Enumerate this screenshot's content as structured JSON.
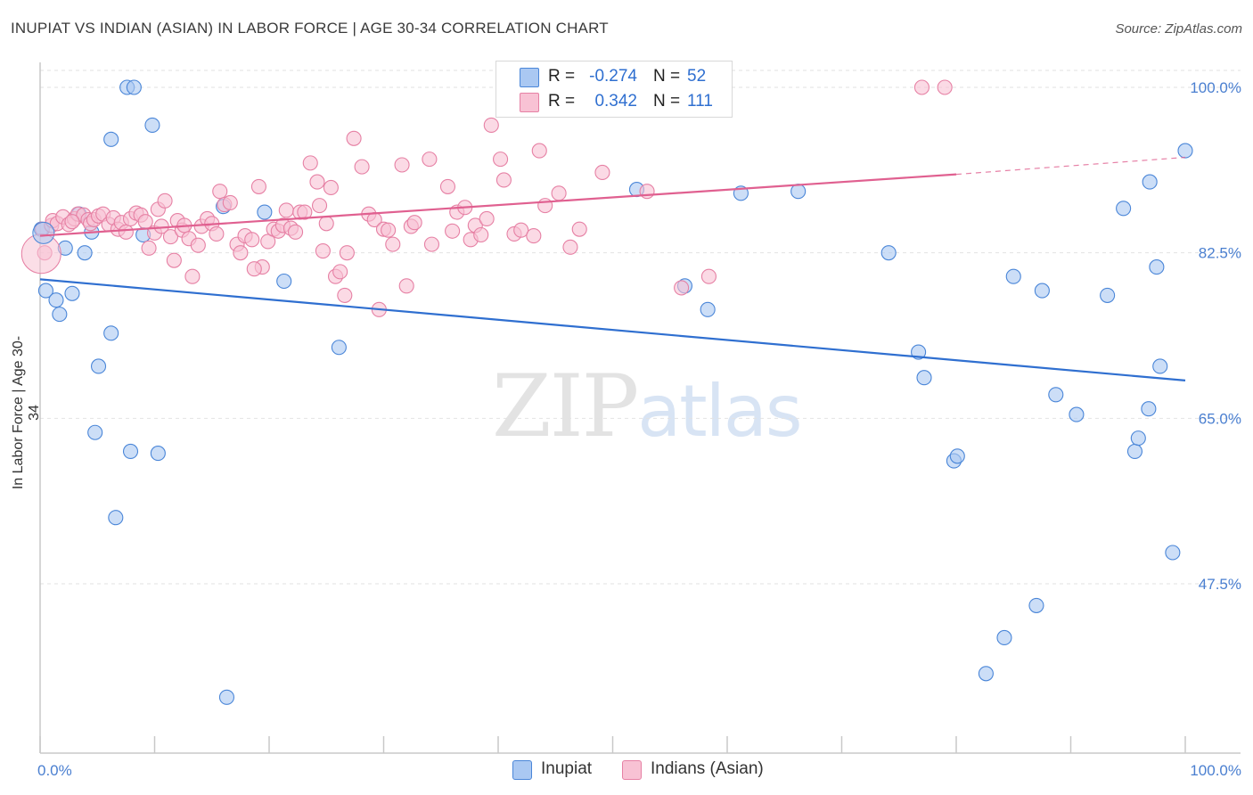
{
  "header": {
    "title": "INUPIAT VS INDIAN (ASIAN) IN LABOR FORCE | AGE 30-34 CORRELATION CHART",
    "source": "Source: ZipAtlas.com"
  },
  "watermark": {
    "zip": "ZIP",
    "atlas": "atlas"
  },
  "stats": {
    "r_label": "R =",
    "n_label": "N =",
    "inupiat": {
      "r": "-0.274",
      "n": "52"
    },
    "indian": {
      "r": "0.342",
      "n": "111"
    }
  },
  "legend": {
    "inupiat": "Inupiat",
    "indian": "Indians (Asian)"
  },
  "colors": {
    "inupiat_fill": "#aac8f2",
    "inupiat_stroke": "#4a86d8",
    "inupiat_line": "#2f6fd0",
    "indian_fill": "#f8c2d4",
    "indian_stroke": "#e680a4",
    "indian_line": "#e06090",
    "grid": "#e2e2e2",
    "tick_text": "#4a7fd0"
  },
  "chart_data": {
    "type": "scatter",
    "title": "INUPIAT VS INDIAN (ASIAN) IN LABOR FORCE | AGE 30-34 CORRELATION CHART",
    "xlabel": "",
    "ylabel": "In Labor Force | Age 30-34",
    "xlim": [
      0,
      100
    ],
    "ylim": [
      31.0,
      102.0
    ],
    "x_tick_labels": [
      "0.0%",
      "100.0%"
    ],
    "y_ticks": [
      47.5,
      65.0,
      82.5,
      100.0
    ],
    "y_tick_labels": [
      "47.5%",
      "65.0%",
      "82.5%",
      "100.0%"
    ],
    "grid": true,
    "legend_position": "bottom-center",
    "series": [
      {
        "name": "Inupiat",
        "points": [
          [
            0.1,
            85.0
          ],
          [
            0.5,
            78.5
          ],
          [
            1.4,
            77.5
          ],
          [
            1.7,
            76.0
          ],
          [
            2.2,
            83.0
          ],
          [
            2.8,
            78.2
          ],
          [
            3.4,
            86.6
          ],
          [
            3.9,
            82.5
          ],
          [
            4.5,
            84.7
          ],
          [
            4.8,
            63.5
          ],
          [
            5.1,
            70.5
          ],
          [
            6.2,
            74.0
          ],
          [
            6.2,
            94.5
          ],
          [
            6.6,
            54.5
          ],
          [
            7.6,
            100.0
          ],
          [
            7.9,
            61.5
          ],
          [
            8.2,
            100.0
          ],
          [
            9.0,
            84.4
          ],
          [
            9.8,
            96.0
          ],
          [
            10.3,
            61.3
          ],
          [
            16.0,
            87.4
          ],
          [
            16.3,
            35.5
          ],
          [
            19.6,
            86.8
          ],
          [
            21.3,
            79.5
          ],
          [
            26.1,
            72.5
          ],
          [
            52.1,
            89.2
          ],
          [
            56.3,
            79.0
          ],
          [
            58.3,
            76.5
          ],
          [
            61.2,
            88.8
          ],
          [
            66.2,
            89.0
          ],
          [
            74.1,
            82.5
          ],
          [
            76.7,
            72.0
          ],
          [
            77.2,
            69.3
          ],
          [
            79.8,
            60.5
          ],
          [
            80.1,
            61.0
          ],
          [
            82.6,
            38.0
          ],
          [
            84.2,
            41.8
          ],
          [
            85.0,
            80.0
          ],
          [
            87.0,
            45.2
          ],
          [
            87.5,
            78.5
          ],
          [
            88.7,
            67.5
          ],
          [
            90.5,
            65.4
          ],
          [
            93.2,
            78.0
          ],
          [
            94.6,
            87.2
          ],
          [
            95.6,
            61.5
          ],
          [
            95.9,
            62.9
          ],
          [
            96.8,
            66.0
          ],
          [
            96.9,
            90.0
          ],
          [
            97.5,
            81.0
          ],
          [
            97.8,
            70.5
          ],
          [
            98.9,
            50.8
          ],
          [
            100.0,
            93.3
          ]
        ],
        "trend": {
          "x0": 0,
          "y0": 79.7,
          "x1": 100,
          "y1": 69.0
        }
      },
      {
        "name": "Indians (Asian)",
        "points": [
          [
            0.2,
            85.0
          ],
          [
            0.4,
            82.5
          ],
          [
            1.0,
            85.4
          ],
          [
            1.1,
            85.9
          ],
          [
            1.5,
            85.6
          ],
          [
            2.0,
            86.3
          ],
          [
            2.5,
            85.5
          ],
          [
            3.0,
            86.1
          ],
          [
            3.3,
            86.6
          ],
          [
            3.8,
            86.5
          ],
          [
            4.2,
            86.0
          ],
          [
            4.4,
            85.6
          ],
          [
            4.7,
            86.0
          ],
          [
            5.1,
            86.4
          ],
          [
            5.5,
            86.6
          ],
          [
            6.0,
            85.5
          ],
          [
            6.4,
            86.2
          ],
          [
            6.8,
            85.0
          ],
          [
            7.1,
            85.7
          ],
          [
            7.5,
            84.7
          ],
          [
            7.9,
            86.1
          ],
          [
            8.4,
            86.7
          ],
          [
            8.8,
            86.5
          ],
          [
            9.2,
            85.8
          ],
          [
            9.5,
            83.0
          ],
          [
            10.0,
            84.6
          ],
          [
            10.3,
            87.1
          ],
          [
            10.6,
            85.3
          ],
          [
            10.9,
            88.0
          ],
          [
            11.4,
            84.2
          ],
          [
            11.7,
            81.7
          ],
          [
            12.0,
            85.9
          ],
          [
            12.4,
            84.9
          ],
          [
            12.6,
            85.4
          ],
          [
            13.0,
            84.0
          ],
          [
            13.3,
            80.0
          ],
          [
            13.8,
            83.3
          ],
          [
            14.1,
            85.3
          ],
          [
            14.6,
            86.1
          ],
          [
            15.0,
            85.6
          ],
          [
            15.4,
            84.5
          ],
          [
            15.7,
            89.0
          ],
          [
            16.1,
            87.6
          ],
          [
            16.6,
            87.8
          ],
          [
            17.2,
            83.4
          ],
          [
            17.5,
            82.5
          ],
          [
            17.9,
            84.3
          ],
          [
            18.5,
            83.9
          ],
          [
            19.1,
            89.5
          ],
          [
            19.4,
            81.0
          ],
          [
            19.9,
            83.7
          ],
          [
            20.4,
            85.0
          ],
          [
            20.8,
            84.8
          ],
          [
            21.2,
            85.4
          ],
          [
            21.5,
            87.0
          ],
          [
            21.9,
            85.1
          ],
          [
            22.3,
            84.7
          ],
          [
            22.7,
            86.8
          ],
          [
            23.1,
            86.8
          ],
          [
            23.6,
            92.0
          ],
          [
            24.2,
            90.0
          ],
          [
            24.4,
            87.5
          ],
          [
            24.7,
            82.7
          ],
          [
            25.0,
            85.6
          ],
          [
            25.4,
            89.4
          ],
          [
            25.8,
            80.0
          ],
          [
            26.6,
            78.0
          ],
          [
            26.8,
            82.5
          ],
          [
            27.4,
            94.6
          ],
          [
            28.1,
            91.6
          ],
          [
            28.7,
            86.6
          ],
          [
            29.2,
            86.0
          ],
          [
            29.6,
            76.5
          ],
          [
            30.0,
            85.0
          ],
          [
            30.4,
            84.9
          ],
          [
            30.8,
            83.4
          ],
          [
            31.6,
            91.8
          ],
          [
            32.0,
            79.0
          ],
          [
            32.4,
            85.3
          ],
          [
            32.7,
            85.7
          ],
          [
            34.0,
            92.4
          ],
          [
            34.2,
            83.4
          ],
          [
            35.6,
            89.5
          ],
          [
            36.0,
            84.8
          ],
          [
            36.4,
            86.8
          ],
          [
            37.1,
            87.3
          ],
          [
            37.6,
            83.9
          ],
          [
            38.0,
            85.4
          ],
          [
            38.5,
            84.4
          ],
          [
            39.0,
            86.1
          ],
          [
            39.4,
            96.0
          ],
          [
            40.2,
            92.4
          ],
          [
            40.5,
            90.2
          ],
          [
            41.4,
            84.5
          ],
          [
            42.0,
            84.9
          ],
          [
            43.1,
            84.3
          ],
          [
            43.6,
            93.3
          ],
          [
            44.1,
            87.5
          ],
          [
            45.3,
            88.8
          ],
          [
            46.3,
            83.1
          ],
          [
            47.1,
            85.0
          ],
          [
            47.2,
            100.0
          ],
          [
            49.1,
            91.0
          ],
          [
            53.0,
            89.0
          ],
          [
            56.0,
            78.8
          ],
          [
            58.4,
            80.0
          ],
          [
            77.0,
            100.0
          ],
          [
            79.0,
            100.0
          ],
          [
            26.2,
            80.5
          ],
          [
            18.7,
            80.8
          ],
          [
            2.8,
            85.8
          ]
        ],
        "trend": {
          "x0": 0,
          "y0": 84.3,
          "x1": 80,
          "y1": 90.8
        },
        "trend_dashed": {
          "x0": 80,
          "y0": 90.8,
          "x1": 100,
          "y1": 92.6
        }
      }
    ]
  }
}
